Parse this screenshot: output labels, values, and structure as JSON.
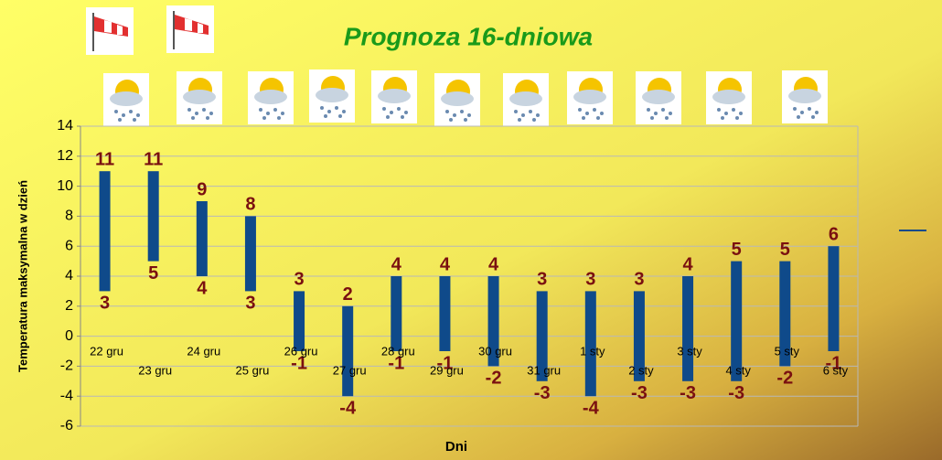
{
  "chart_data": {
    "type": "floating-bar",
    "title": "Prognoza 16-dniowa",
    "y_label": "Temperatura maksymalna w dzień",
    "x_label": "Dni",
    "categories": [
      "22 gru",
      "23 gru",
      "24 gru",
      "25 gru",
      "26 gru",
      "27 gru",
      "28 gru",
      "29 gru",
      "30 gru",
      "31 gru",
      "1 sty",
      "2 sty",
      "3 sty",
      "4 sty",
      "5 sty",
      "6 sty"
    ],
    "high": [
      11,
      11,
      9,
      8,
      3,
      2,
      4,
      4,
      4,
      3,
      3,
      3,
      4,
      5,
      5,
      6
    ],
    "low": [
      3,
      5,
      4,
      3,
      -1,
      -4,
      -1,
      -1,
      -2,
      -3,
      -4,
      -3,
      -3,
      -3,
      -2,
      -1
    ],
    "color": "#0f4a8a",
    "label_color": "#7a1010",
    "ylim": [
      -6,
      14
    ],
    "yticks": [
      -6,
      -4,
      -2,
      0,
      2,
      4,
      6,
      8,
      10,
      12,
      14
    ],
    "grid": true
  }
}
